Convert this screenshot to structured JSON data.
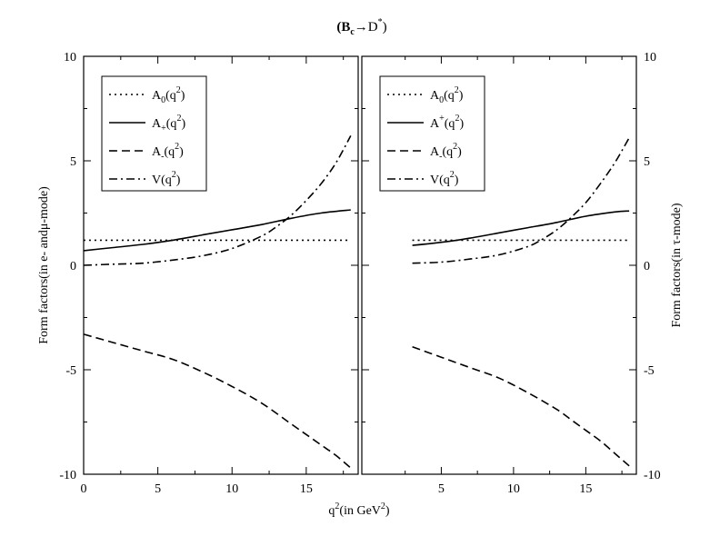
{
  "title": {
    "base": "(B",
    "sub": "c",
    "arrow": "→D",
    "sup": "*",
    "close": ")"
  },
  "left_panel": {
    "ylabel": "Form factors(in e- andμ-mode)",
    "yticks": [
      "10",
      "5",
      "0",
      "-5",
      "-10"
    ],
    "xticks": [
      "0",
      "5",
      "10",
      "15"
    ],
    "legend": [
      {
        "base": "A",
        "idx": "0",
        "idxpos": "sub",
        "arg": "(q",
        "sup2": "2",
        "close": ")"
      },
      {
        "base": "A",
        "idx": "+",
        "idxpos": "sub",
        "arg": "(q",
        "sup2": "2",
        "close": ")"
      },
      {
        "base": "A",
        "idx": "-",
        "idxpos": "sub",
        "arg": "(q",
        "sup2": "2",
        "close": ")"
      },
      {
        "base": "V",
        "idx": "",
        "idxpos": "sub",
        "arg": "(q",
        "sup2": "2",
        "close": ")"
      }
    ]
  },
  "right_panel": {
    "ylabel": "Form factors(in τ-mode)",
    "yticks": [
      "10",
      "5",
      "0",
      "-5",
      "-10"
    ],
    "xticks": [
      "5",
      "10",
      "15"
    ],
    "legend": [
      {
        "base": "A",
        "idx": "0",
        "idxpos": "sub",
        "arg": "(q",
        "sup2": "2",
        "close": ")"
      },
      {
        "base": "A",
        "idx": "+",
        "idxpos": "sup",
        "arg": "(q",
        "sup2": "2",
        "close": ")"
      },
      {
        "base": "A",
        "idx": "-",
        "idxpos": "sub",
        "arg": "(q",
        "sup2": "2",
        "close": ")"
      },
      {
        "base": "V",
        "idx": "",
        "idxpos": "sub",
        "arg": "(q",
        "sup2": "2",
        "close": ")"
      }
    ]
  },
  "xlabel": {
    "pre": "q",
    "sup": "2",
    "mid": "(in GeV",
    "sup2": "2",
    "close": ")"
  },
  "chart_data": [
    {
      "type": "line",
      "panel": "left",
      "xlim": [
        0,
        18.5
      ],
      "ylim": [
        -10,
        10
      ],
      "series": [
        {
          "name": "A0(q2)",
          "style": "dotted",
          "x": [
            0,
            18
          ],
          "y": [
            1.2,
            1.2
          ]
        },
        {
          "name": "A+(q2)",
          "style": "solid",
          "x": [
            0,
            2,
            4,
            6,
            8,
            10,
            12,
            14,
            16,
            18
          ],
          "y": [
            0.7,
            0.85,
            1.0,
            1.2,
            1.45,
            1.7,
            1.95,
            2.25,
            2.5,
            2.65
          ]
        },
        {
          "name": "A-(q2)",
          "style": "dashed",
          "x": [
            0,
            2,
            4,
            6,
            8,
            10,
            12,
            14,
            15,
            16,
            17,
            18
          ],
          "y": [
            -3.3,
            -3.7,
            -4.1,
            -4.5,
            -5.1,
            -5.8,
            -6.6,
            -7.6,
            -8.1,
            -8.6,
            -9.1,
            -9.7
          ]
        },
        {
          "name": "V(q2)",
          "style": "dashdot",
          "x": [
            0,
            2,
            4,
            6,
            8,
            10,
            12,
            13,
            14,
            15,
            16,
            17,
            18
          ],
          "y": [
            0.0,
            0.05,
            0.1,
            0.25,
            0.45,
            0.8,
            1.4,
            1.85,
            2.4,
            3.1,
            3.9,
            4.9,
            6.2
          ]
        }
      ]
    },
    {
      "type": "line",
      "panel": "right",
      "xlim": [
        -0.5,
        18.5
      ],
      "ylim": [
        -10,
        10
      ],
      "series": [
        {
          "name": "A0(q2)",
          "style": "dotted",
          "x": [
            3,
            18
          ],
          "y": [
            1.2,
            1.2
          ]
        },
        {
          "name": "A+(q2)",
          "style": "solid",
          "x": [
            3,
            5,
            7,
            9,
            11,
            13,
            15,
            17,
            18
          ],
          "y": [
            0.95,
            1.1,
            1.3,
            1.55,
            1.8,
            2.05,
            2.35,
            2.55,
            2.6
          ]
        },
        {
          "name": "A-(q2)",
          "style": "dashed",
          "x": [
            3,
            5,
            7,
            9,
            11,
            13,
            14,
            15,
            16,
            17,
            18
          ],
          "y": [
            -3.9,
            -4.4,
            -4.9,
            -5.4,
            -6.1,
            -6.9,
            -7.4,
            -7.9,
            -8.4,
            -9.0,
            -9.6
          ]
        },
        {
          "name": "V(q2)",
          "style": "dashdot",
          "x": [
            3,
            5,
            7,
            9,
            11,
            12,
            13,
            14,
            15,
            16,
            17,
            18
          ],
          "y": [
            0.1,
            0.15,
            0.3,
            0.5,
            0.9,
            1.25,
            1.7,
            2.3,
            3.0,
            3.9,
            4.9,
            6.1
          ]
        }
      ]
    }
  ]
}
